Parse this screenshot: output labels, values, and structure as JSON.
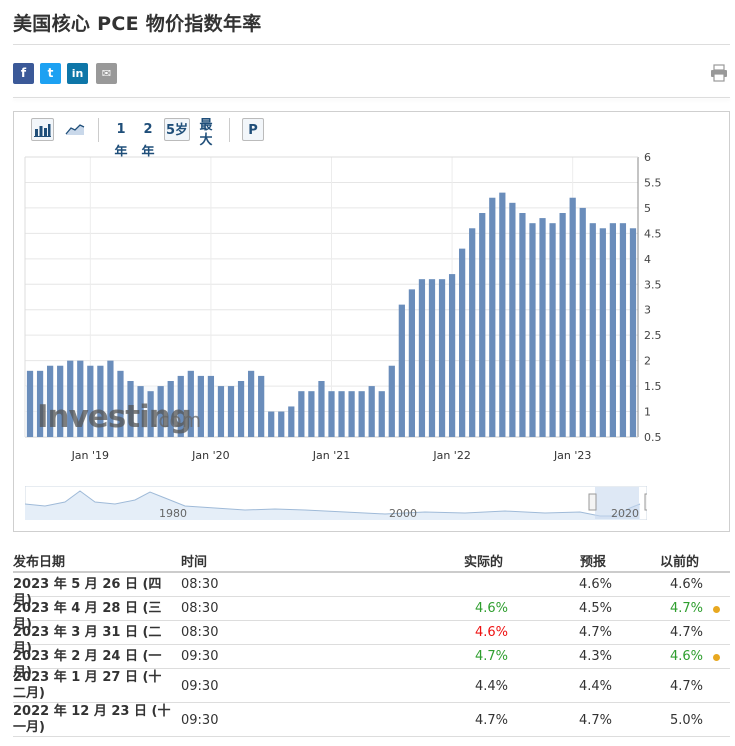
{
  "page_title": "美国核心 PCE 物价指数年率",
  "share": {
    "facebook": "f",
    "twitter": "t",
    "linkedin": "in",
    "email": "✉"
  },
  "toolbar": {
    "range_1y": "1年",
    "range_2y": "2年",
    "range_5y": "5岁",
    "range_max": "最大",
    "p_button": "P"
  },
  "chart_data": {
    "type": "bar",
    "y_axis_position": "right",
    "ylim": [
      0.5,
      6
    ],
    "yticks": [
      "6",
      "5.5",
      "5",
      "4.5",
      "4",
      "3.5",
      "3",
      "2.5",
      "2",
      "1.5",
      "1",
      "0.5"
    ],
    "xticks": [
      "Jan '19",
      "Jan '20",
      "Jan '21",
      "Jan '22",
      "Jan '23"
    ],
    "values": [
      1.8,
      1.8,
      1.9,
      1.9,
      2.0,
      2.0,
      1.9,
      1.9,
      2.0,
      1.8,
      1.6,
      1.5,
      1.4,
      1.5,
      1.6,
      1.7,
      1.8,
      1.7,
      1.7,
      1.5,
      1.5,
      1.6,
      1.8,
      1.7,
      1.0,
      1.0,
      1.1,
      1.4,
      1.4,
      1.6,
      1.4,
      1.4,
      1.4,
      1.4,
      1.5,
      1.4,
      1.9,
      3.1,
      3.4,
      3.6,
      3.6,
      3.6,
      3.7,
      4.2,
      4.6,
      4.9,
      5.2,
      5.3,
      5.1,
      4.9,
      4.7,
      4.8,
      4.7,
      4.9,
      5.2,
      5.0,
      4.7,
      4.6,
      4.7,
      4.7,
      4.6
    ],
    "watermark": "Investing.com",
    "overview_labels": [
      "1980",
      "2000",
      "2020"
    ],
    "bar_color": "#6a8dbb",
    "grid": true
  },
  "history": {
    "headers": {
      "date": "发布日期",
      "time": "时间",
      "actual": "实际的",
      "forecast": "预报",
      "previous": "以前的"
    },
    "rows": [
      {
        "date": "2023 年 5 月 26 日 (四月)",
        "time": "08:30",
        "actual": "",
        "forecast": "4.6%",
        "previous": "4.6%",
        "actual_color": "",
        "previous_color": "",
        "revised": false
      },
      {
        "date": "2023 年 4 月 28 日 (三月)",
        "time": "08:30",
        "actual": "4.6%",
        "forecast": "4.5%",
        "previous": "4.7%",
        "actual_color": "green",
        "previous_color": "green",
        "revised": true
      },
      {
        "date": "2023 年 3 月 31 日 (二月)",
        "time": "08:30",
        "actual": "4.6%",
        "forecast": "4.7%",
        "previous": "4.7%",
        "actual_color": "red",
        "previous_color": "",
        "revised": false
      },
      {
        "date": "2023 年 2 月 24 日 (一月)",
        "time": "09:30",
        "actual": "4.7%",
        "forecast": "4.3%",
        "previous": "4.6%",
        "actual_color": "green",
        "previous_color": "green",
        "revised": true
      },
      {
        "date": "2023 年 1 月 27 日 (十二月)",
        "time": "09:30",
        "actual": "4.4%",
        "forecast": "4.4%",
        "previous": "4.7%",
        "actual_color": "",
        "previous_color": "",
        "revised": false
      },
      {
        "date": "2022 年 12 月 23 日 (十一月)",
        "time": "09:30",
        "actual": "4.7%",
        "forecast": "4.7%",
        "previous": "5.0%",
        "actual_color": "",
        "previous_color": "",
        "revised": false
      }
    ]
  }
}
